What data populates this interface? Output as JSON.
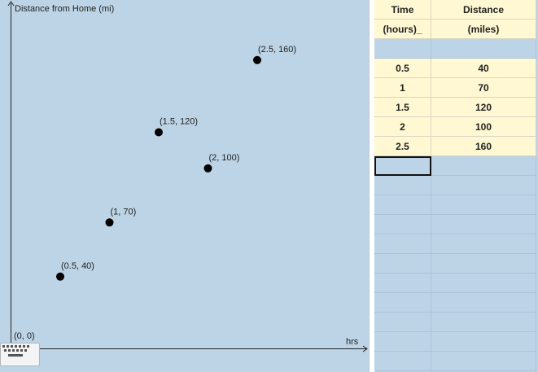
{
  "graph": {
    "y_axis_label": "Distance from Home (mi)",
    "x_axis_label": "hrs",
    "origin_label": "(0, 0)",
    "points": [
      {
        "x": 0.5,
        "y": 40,
        "label": "(0.5, 40)"
      },
      {
        "x": 1,
        "y": 70,
        "label": "(1, 70)"
      },
      {
        "x": 1.5,
        "y": 120,
        "label": "(1.5, 120)"
      },
      {
        "x": 2,
        "y": 100,
        "label": "(2, 100)"
      },
      {
        "x": 2.5,
        "y": 160,
        "label": "(2.5, 160)"
      }
    ],
    "point_color": "#000000",
    "background_color": "#bcd4e6"
  },
  "spreadsheet": {
    "header_row1": [
      "Time",
      "Distance"
    ],
    "header_row2": [
      "(hours)_",
      "(miles)"
    ],
    "rows": [
      [
        "0.5",
        "40"
      ],
      [
        "1",
        "70"
      ],
      [
        "1.5",
        "120"
      ],
      [
        "2",
        "100"
      ],
      [
        "2.5",
        "160"
      ]
    ],
    "cell_color": "#fff8d2"
  },
  "keyboard_button": {
    "icon": "keyboard-icon"
  }
}
